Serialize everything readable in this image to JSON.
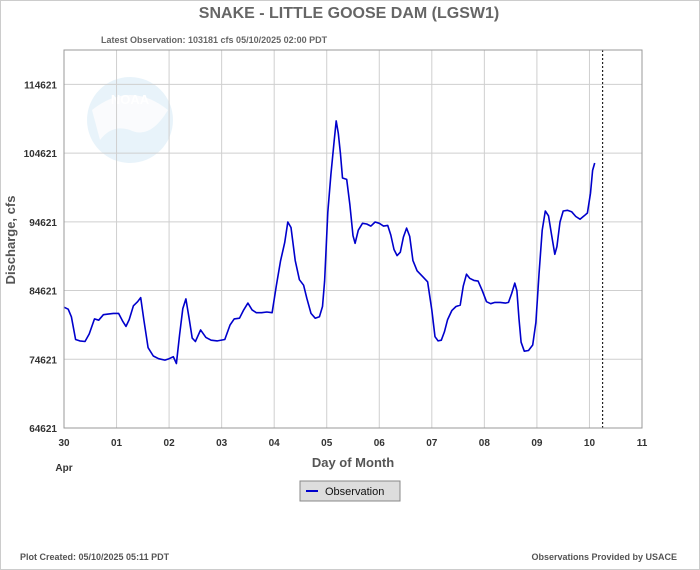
{
  "chart_data": {
    "type": "line",
    "title": "SNAKE - LITTLE GOOSE DAM  (LGSW1)",
    "subtitle": "Latest Observation: 103181 cfs 05/10/2025 02:00 PDT",
    "xlabel": "Day of Month",
    "ylabel": "Discharge, cfs",
    "x_unit": "day (0 = Apr 30 00:00)",
    "xlim": [
      0,
      11
    ],
    "ylim": [
      64621,
      119621
    ],
    "x_ticks": [
      {
        "value": 0,
        "label": "30"
      },
      {
        "value": 1,
        "label": "01"
      },
      {
        "value": 2,
        "label": "02"
      },
      {
        "value": 3,
        "label": "03"
      },
      {
        "value": 4,
        "label": "04"
      },
      {
        "value": 5,
        "label": "05"
      },
      {
        "value": 6,
        "label": "06"
      },
      {
        "value": 7,
        "label": "07"
      },
      {
        "value": 8,
        "label": "08"
      },
      {
        "value": 9,
        "label": "09"
      },
      {
        "value": 10,
        "label": "10"
      },
      {
        "value": 11,
        "label": "11"
      }
    ],
    "x_month_label": "Apr",
    "y_ticks": [
      64621,
      74621,
      84621,
      94621,
      104621,
      114621
    ],
    "grid": true,
    "legend": "bottom-center",
    "current_time_marker_x": 10.25,
    "series": [
      {
        "name": "Observation",
        "color": "#0000cc",
        "points": [
          [
            0.0,
            82200
          ],
          [
            0.08,
            81900
          ],
          [
            0.14,
            80800
          ],
          [
            0.22,
            77500
          ],
          [
            0.3,
            77300
          ],
          [
            0.4,
            77200
          ],
          [
            0.48,
            78300
          ],
          [
            0.58,
            80500
          ],
          [
            0.66,
            80300
          ],
          [
            0.75,
            81100
          ],
          [
            0.84,
            81200
          ],
          [
            0.94,
            81300
          ],
          [
            1.04,
            81300
          ],
          [
            1.12,
            80100
          ],
          [
            1.18,
            79400
          ],
          [
            1.24,
            80400
          ],
          [
            1.32,
            82400
          ],
          [
            1.4,
            83000
          ],
          [
            1.46,
            83600
          ],
          [
            1.52,
            80300
          ],
          [
            1.6,
            76300
          ],
          [
            1.7,
            75100
          ],
          [
            1.8,
            74700
          ],
          [
            1.92,
            74500
          ],
          [
            2.0,
            74700
          ],
          [
            2.08,
            75000
          ],
          [
            2.14,
            74000
          ],
          [
            2.2,
            78200
          ],
          [
            2.26,
            82000
          ],
          [
            2.32,
            83400
          ],
          [
            2.38,
            80600
          ],
          [
            2.44,
            77700
          ],
          [
            2.5,
            77200
          ],
          [
            2.6,
            78900
          ],
          [
            2.7,
            77800
          ],
          [
            2.8,
            77400
          ],
          [
            2.92,
            77300
          ],
          [
            3.06,
            77500
          ],
          [
            3.16,
            79600
          ],
          [
            3.24,
            80500
          ],
          [
            3.34,
            80600
          ],
          [
            3.42,
            81800
          ],
          [
            3.5,
            82800
          ],
          [
            3.58,
            81800
          ],
          [
            3.66,
            81400
          ],
          [
            3.76,
            81400
          ],
          [
            3.86,
            81500
          ],
          [
            3.96,
            81400
          ],
          [
            4.04,
            85300
          ],
          [
            4.12,
            88900
          ],
          [
            4.2,
            91600
          ],
          [
            4.26,
            94600
          ],
          [
            4.32,
            93800
          ],
          [
            4.4,
            89000
          ],
          [
            4.48,
            86200
          ],
          [
            4.56,
            85400
          ],
          [
            4.62,
            83500
          ],
          [
            4.7,
            81300
          ],
          [
            4.78,
            80600
          ],
          [
            4.86,
            80800
          ],
          [
            4.92,
            82300
          ],
          [
            4.96,
            86000
          ],
          [
            5.02,
            96000
          ],
          [
            5.08,
            101500
          ],
          [
            5.14,
            106300
          ],
          [
            5.18,
            109300
          ],
          [
            5.22,
            107500
          ],
          [
            5.26,
            104600
          ],
          [
            5.3,
            101000
          ],
          [
            5.38,
            100800
          ],
          [
            5.44,
            97200
          ],
          [
            5.5,
            92600
          ],
          [
            5.54,
            91500
          ],
          [
            5.6,
            93400
          ],
          [
            5.68,
            94400
          ],
          [
            5.76,
            94300
          ],
          [
            5.84,
            94000
          ],
          [
            5.92,
            94600
          ],
          [
            6.0,
            94400
          ],
          [
            6.08,
            94000
          ],
          [
            6.16,
            94100
          ],
          [
            6.22,
            92700
          ],
          [
            6.28,
            90600
          ],
          [
            6.34,
            89700
          ],
          [
            6.4,
            90200
          ],
          [
            6.46,
            92400
          ],
          [
            6.52,
            93700
          ],
          [
            6.58,
            92500
          ],
          [
            6.64,
            89000
          ],
          [
            6.72,
            87500
          ],
          [
            6.82,
            86700
          ],
          [
            6.92,
            85900
          ],
          [
            7.0,
            81800
          ],
          [
            7.06,
            77900
          ],
          [
            7.12,
            77300
          ],
          [
            7.18,
            77400
          ],
          [
            7.24,
            78600
          ],
          [
            7.3,
            80400
          ],
          [
            7.38,
            81700
          ],
          [
            7.46,
            82300
          ],
          [
            7.54,
            82500
          ],
          [
            7.6,
            85300
          ],
          [
            7.66,
            87000
          ],
          [
            7.72,
            86400
          ],
          [
            7.8,
            86100
          ],
          [
            7.88,
            86000
          ],
          [
            7.96,
            84600
          ],
          [
            8.04,
            83000
          ],
          [
            8.12,
            82700
          ],
          [
            8.2,
            82900
          ],
          [
            8.3,
            82900
          ],
          [
            8.4,
            82800
          ],
          [
            8.46,
            82900
          ],
          [
            8.52,
            84200
          ],
          [
            8.58,
            85700
          ],
          [
            8.62,
            84600
          ],
          [
            8.66,
            80500
          ],
          [
            8.7,
            77100
          ],
          [
            8.76,
            75800
          ],
          [
            8.84,
            75900
          ],
          [
            8.92,
            76700
          ],
          [
            8.98,
            80000
          ],
          [
            9.04,
            87000
          ],
          [
            9.1,
            93400
          ],
          [
            9.16,
            96200
          ],
          [
            9.22,
            95500
          ],
          [
            9.28,
            92700
          ],
          [
            9.34,
            89900
          ],
          [
            9.38,
            91000
          ],
          [
            9.44,
            94600
          ],
          [
            9.5,
            96200
          ],
          [
            9.58,
            96300
          ],
          [
            9.66,
            96100
          ],
          [
            9.74,
            95400
          ],
          [
            9.82,
            95000
          ],
          [
            9.9,
            95500
          ],
          [
            9.96,
            95900
          ],
          [
            10.02,
            98800
          ],
          [
            10.06,
            102100
          ],
          [
            10.1,
            103181
          ]
        ]
      }
    ]
  },
  "footer": {
    "plot_created": "Plot Created: 05/10/2025 05:11 PDT",
    "provided_by": "Observations Provided by USACE"
  },
  "logo": {
    "text": "NOAA"
  }
}
